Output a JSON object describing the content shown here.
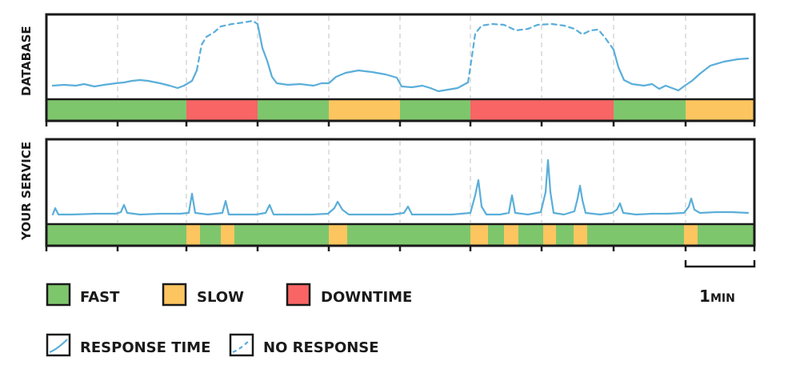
{
  "panels": {
    "database": {
      "label": "DATABASE"
    },
    "service": {
      "label": "YOUR SERVICE"
    }
  },
  "legend": {
    "fast": "FAST",
    "slow": "SLOW",
    "downtime": "DOWNTIME",
    "response_time": "RESPONSE TIME",
    "no_response": "NO RESPONSE"
  },
  "scale": {
    "label_num": "1",
    "label_unit": "MIN"
  },
  "colors": {
    "fast": "#7ec66c",
    "slow": "#fcc55f",
    "downtime": "#f96565",
    "line": "#5aaed9",
    "ink": "#1a1a1a",
    "grid": "#d5d5d5"
  },
  "database_status": [
    "fast",
    "fast",
    "downtime",
    "fast",
    "slow",
    "fast",
    "downtime",
    "downtime",
    "fast",
    "slow"
  ],
  "service_status_note": "fast with slow spikes",
  "icons": [
    "line-swatch-icon",
    "dashed-line-swatch-icon"
  ]
}
